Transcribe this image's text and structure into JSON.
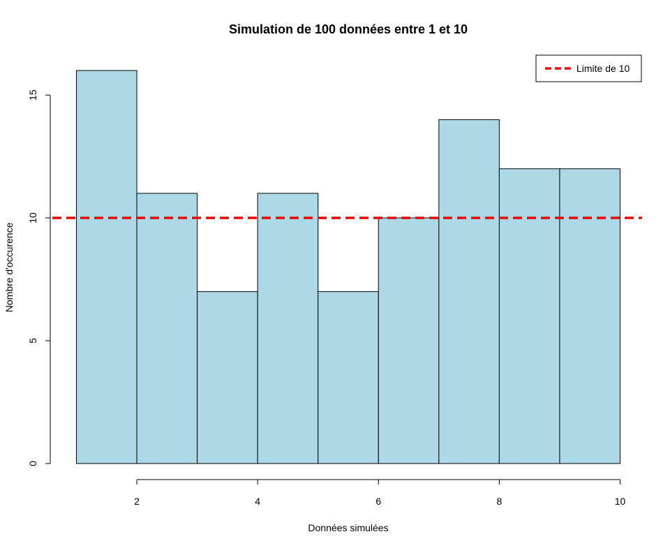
{
  "chart_data": {
    "type": "bar",
    "title": "Simulation de 100 données entre 1 et 10",
    "xlabel": "Données simulées",
    "ylabel": "Nombre d'occurence",
    "bins": [
      {
        "from": 1,
        "to": 2,
        "count": 16
      },
      {
        "from": 2,
        "to": 3,
        "count": 11
      },
      {
        "from": 3,
        "to": 4,
        "count": 7
      },
      {
        "from": 4,
        "to": 5,
        "count": 11
      },
      {
        "from": 5,
        "to": 6,
        "count": 7
      },
      {
        "from": 6,
        "to": 7,
        "count": 10
      },
      {
        "from": 7,
        "to": 8,
        "count": 14
      },
      {
        "from": 8,
        "to": 9,
        "count": 12
      },
      {
        "from": 9,
        "to": 10,
        "count": 12
      }
    ],
    "x_ticks": [
      "2",
      "4",
      "6",
      "8",
      "10"
    ],
    "y_ticks": [
      "0",
      "5",
      "10",
      "15"
    ],
    "xlim": [
      1,
      10
    ],
    "ylim": [
      0,
      16
    ],
    "bar_color": "#add8e6",
    "reference_line": {
      "y": 10,
      "color": "#ff0000",
      "style": "dashed",
      "label": "Limite de 10"
    },
    "legend_position": "top-right",
    "grid": false
  }
}
